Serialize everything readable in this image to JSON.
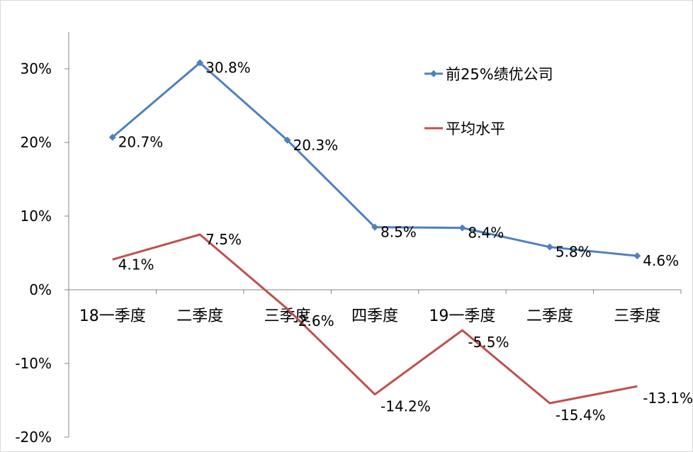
{
  "chart_data": {
    "type": "line",
    "title": "",
    "xlabel": "",
    "ylabel": "",
    "categories": [
      "18一季度",
      "二季度",
      "三季度",
      "四季度",
      "19一季度",
      "二季度",
      "三季度"
    ],
    "ylim": [
      -0.2,
      0.3
    ],
    "y_ticks": [
      -0.2,
      -0.1,
      0,
      0.1,
      0.2,
      0.3
    ],
    "y_tick_labels": [
      "-20%",
      "-10%",
      "0%",
      "10%",
      "20%",
      "30%"
    ],
    "grid": false,
    "legend_position": "top-right",
    "series": [
      {
        "name": "前25%绩优公司",
        "color": "#4F81BD",
        "marker": "diamond",
        "values": [
          0.207,
          0.308,
          0.203,
          0.085,
          0.084,
          0.058,
          0.046
        ],
        "labels": [
          "20.7%",
          "30.8%",
          "20.3%",
          "8.5%",
          "8.4%",
          "5.8%",
          "4.6%"
        ]
      },
      {
        "name": "平均水平",
        "color": "#C0504D",
        "marker": "none",
        "values": [
          0.041,
          0.075,
          -0.026,
          -0.142,
          -0.055,
          -0.154,
          -0.131
        ],
        "labels": [
          "4.1%",
          "7.5%",
          "-2.6%",
          "-14.2%",
          "-5.5%",
          "-15.4%",
          "-13.1%"
        ]
      }
    ]
  }
}
